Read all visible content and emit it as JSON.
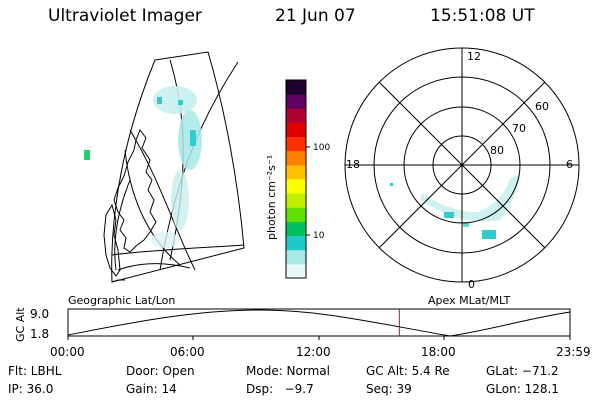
{
  "header": {
    "instrument": "Ultraviolet Imager",
    "date": "21 Jun 07",
    "time": "15:51:08 UT"
  },
  "colorbar": {
    "label": "photon cm⁻²s⁻¹",
    "ticks": [
      "100",
      "10"
    ],
    "colors": [
      "#e8f8f8",
      "#a8e8e8",
      "#20c8c8",
      "#00c060",
      "#60e000",
      "#c0f000",
      "#ffff00",
      "#ffc000",
      "#ff8000",
      "#ff3000",
      "#e00000",
      "#b00030",
      "#600060",
      "#200030"
    ]
  },
  "polar": {
    "mlt_labels": {
      "top": "12",
      "left": "18",
      "right": "6",
      "bottom": "0"
    },
    "lat_labels": [
      "60",
      "70",
      "80"
    ]
  },
  "timeline": {
    "left_label": "Geographic Lat/Lon",
    "right_label": "Apex MLat/MLT",
    "axis_title": "GC Alt",
    "y_ticks": [
      "9.0",
      "1.8"
    ],
    "x_ticks": [
      "00:00",
      "06:00",
      "12:00",
      "18:00",
      "23:59"
    ],
    "current_time_fraction": 0.66
  },
  "footer": {
    "flt": "Flt: LBHL",
    "door": "Door: Open",
    "mode": "Mode: Normal",
    "gcalt": "GC Alt: 5.4 Re",
    "glat": "GLat: −71.2",
    "ip": "IP: 36.0",
    "gain": "Gain: 14",
    "dsp": "Dsp:   −9.7",
    "seq": "Seq: 39",
    "glon": "GLon: 128.1"
  }
}
